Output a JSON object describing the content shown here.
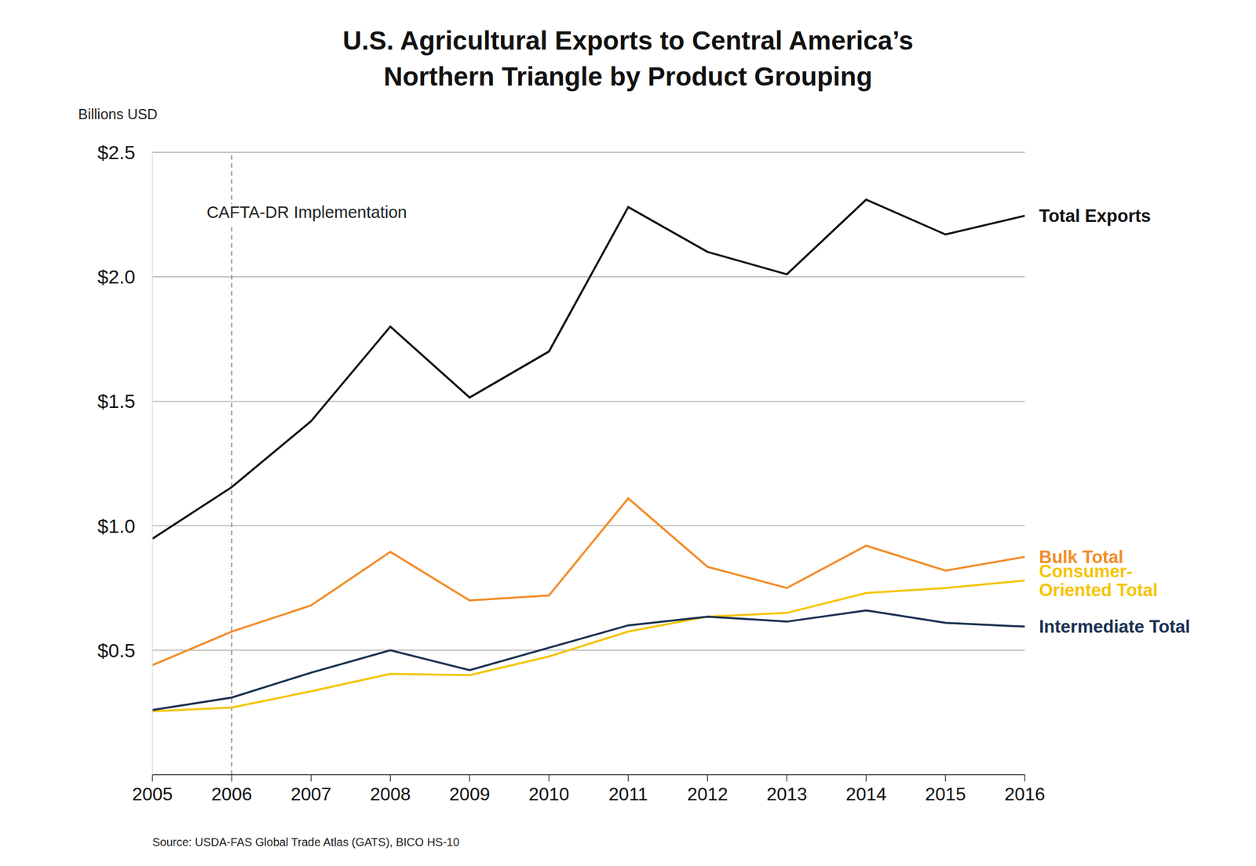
{
  "chart_data": {
    "type": "line",
    "title": "U.S. Agricultural Exports to Central America’s\nNorthern Triangle by Product Grouping",
    "y_label": "Billions USD",
    "source": "Source: USDA-FAS Global Trade Atlas (GATS), BICO HS-10",
    "x": [
      2005,
      2006,
      2007,
      2008,
      2009,
      2010,
      2011,
      2012,
      2013,
      2014,
      2015,
      2016
    ],
    "xlim": [
      2005,
      2016
    ],
    "xticks": [
      2005,
      2006,
      2007,
      2008,
      2009,
      2010,
      2011,
      2012,
      2013,
      2014,
      2015,
      2016
    ],
    "ylim": [
      0,
      2.5
    ],
    "yticks": [
      {
        "value": 0.5,
        "label": "$0.5"
      },
      {
        "value": 1.0,
        "label": "$1.0"
      },
      {
        "value": 1.5,
        "label": "$1.5"
      },
      {
        "value": 2.0,
        "label": "$2.0"
      },
      {
        "value": 2.5,
        "label": "$2.5"
      }
    ],
    "grid": true,
    "annotations": [
      {
        "text": "CAFTA-DR Implementation",
        "x": 2006,
        "line_style": "dashed"
      }
    ],
    "series": [
      {
        "name": "Total Exports",
        "color": "#111111",
        "values": [
          0.948,
          1.155,
          1.42,
          1.8,
          1.515,
          1.7,
          2.28,
          2.1,
          2.01,
          2.31,
          2.17,
          2.245
        ]
      },
      {
        "name": "Bulk Total",
        "color": "#f28c28",
        "values": [
          0.44,
          0.575,
          0.68,
          0.895,
          0.7,
          0.72,
          1.11,
          0.835,
          0.75,
          0.92,
          0.82,
          0.875
        ]
      },
      {
        "name": "Consumer-Oriented Total",
        "color": "#f5c400",
        "values": [
          0.255,
          0.27,
          0.335,
          0.405,
          0.4,
          0.475,
          0.575,
          0.635,
          0.65,
          0.73,
          0.75,
          0.78
        ]
      },
      {
        "name": "Intermediate Total",
        "color": "#1a3050",
        "values": [
          0.26,
          0.31,
          0.41,
          0.5,
          0.42,
          0.51,
          0.6,
          0.635,
          0.615,
          0.66,
          0.61,
          0.595
        ]
      }
    ]
  }
}
